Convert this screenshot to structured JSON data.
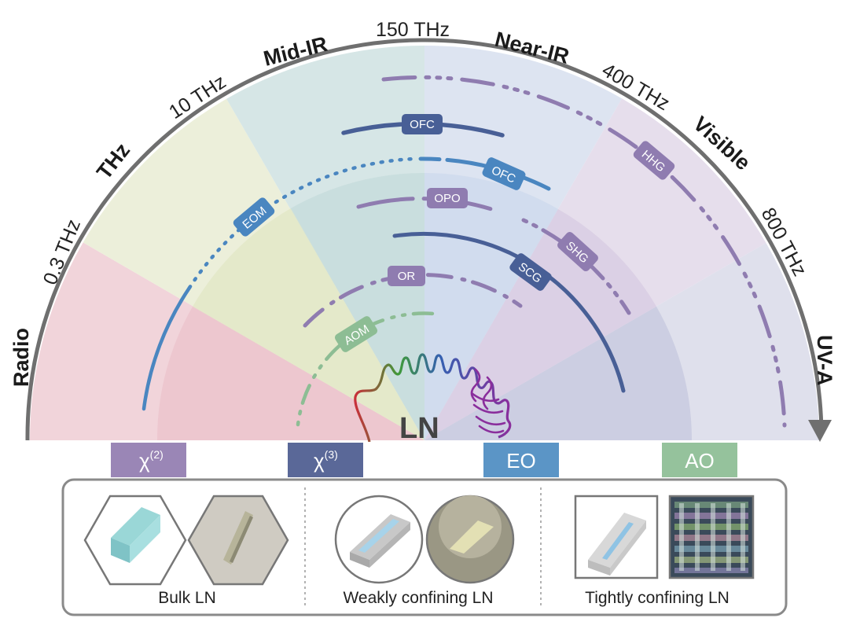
{
  "bands": [
    "Radio",
    "THz",
    "Mid-IR",
    "Near-IR",
    "Visible",
    "UV-A"
  ],
  "frequencies": [
    "0.3 THz",
    "10 THz",
    "150 THz",
    "400 THz",
    "800 THz"
  ],
  "center_label": "LN",
  "processes": {
    "ofc_inner": "OFC",
    "ofc_outer": "OFC",
    "eom": "EOM",
    "hhg": "HHG",
    "opo": "OPO",
    "shg": "SHG",
    "or": "OR",
    "scg": "SCG",
    "aom": "AOM"
  },
  "legend": {
    "chi2": "χ",
    "chi2_sup": "(2)",
    "chi3": "χ",
    "chi3_sup": "(3)",
    "eo": "EO",
    "ao": "AO"
  },
  "panel": {
    "bulk": "Bulk LN",
    "weak": "Weakly confining LN",
    "tight": "Tightly confining LN"
  },
  "colors": {
    "chi2": "#9a86b6",
    "chi3": "#5a6898",
    "eo": "#5b95c6",
    "ao": "#95c29c",
    "arc_outline": "#6f6f6f"
  }
}
